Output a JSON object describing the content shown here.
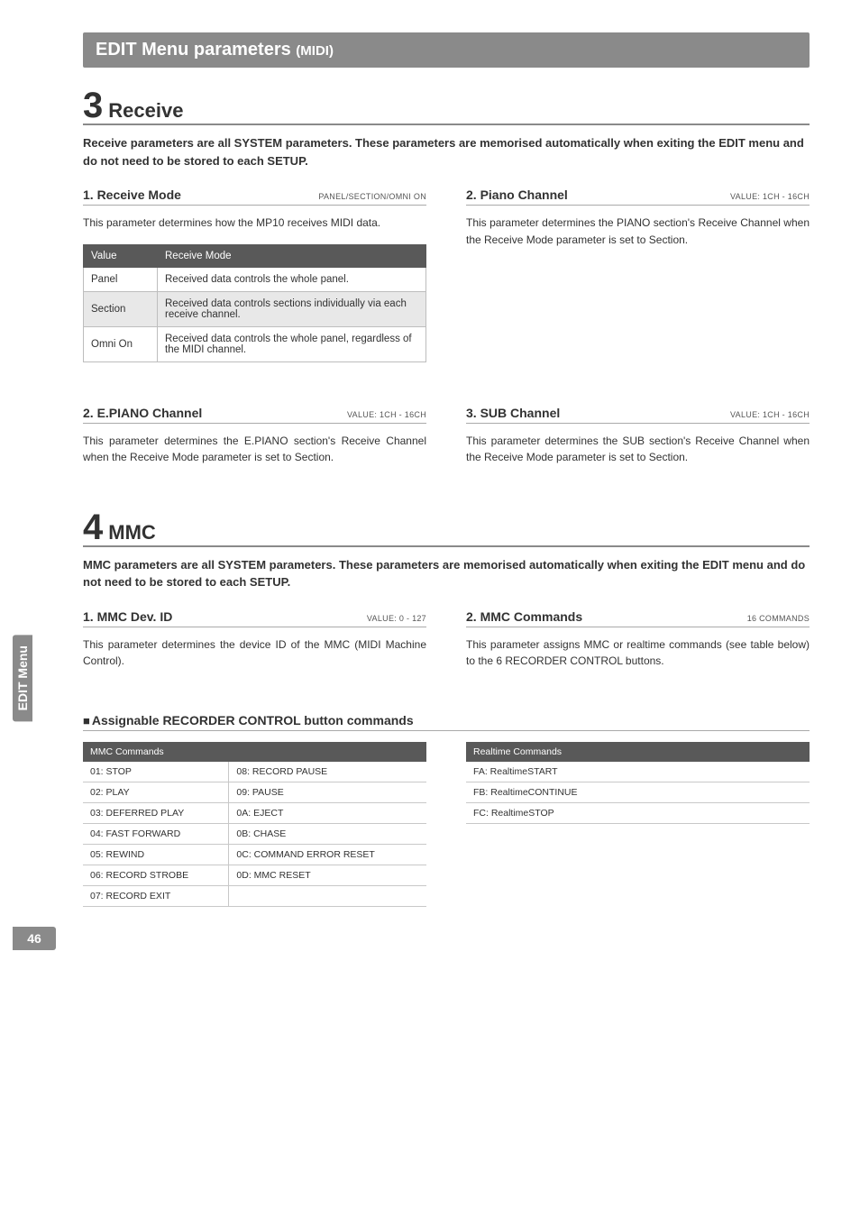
{
  "text_color": "#323232",
  "bg_color": "#ffffff",
  "grey": "#8a8a8a",
  "dark_grey": "#595959",
  "alt_row": "#e8e8e8",
  "border_grey": "#bdbdbd",
  "tab_label": "EDIT Menu",
  "page_number": "46",
  "banner": {
    "main": "EDIT Menu parameters",
    "sub": "(MIDI)"
  },
  "section3": {
    "num": "3",
    "title": "Receive",
    "intro": "Receive parameters are all SYSTEM parameters.  These parameters are memorised automatically when exiting the EDIT menu and do not need to be stored to each SETUP.",
    "p1": {
      "title": "1. Receive Mode",
      "range": "PANEL/SECTION/OMNI ON",
      "body": "This parameter determines how the MP10 receives MIDI data.",
      "table": {
        "headers": [
          "Value",
          "Receive Mode"
        ],
        "rows": [
          [
            "Panel",
            "Received data controls the whole panel."
          ],
          [
            "Section",
            "Received data controls sections individually via each receive channel."
          ],
          [
            "Omni On",
            "Received data controls the whole panel, regardless of the MIDI channel."
          ]
        ]
      }
    },
    "p2": {
      "title": "2. Piano Channel",
      "range": "VALUE: 1CH - 16CH",
      "body": "This parameter determines the PIANO section's Receive Channel when the Receive Mode parameter is set to Section."
    },
    "p3": {
      "title": "2. E.PIANO Channel",
      "range": "VALUE: 1CH - 16CH",
      "body": "This parameter determines the E.PIANO section's Receive Channel when the Receive Mode parameter is set to Section."
    },
    "p4": {
      "title": "3. SUB Channel",
      "range": "VALUE: 1CH - 16CH",
      "body": "This parameter determines the SUB section's Receive Channel when the Receive Mode parameter is set to Section."
    }
  },
  "section4": {
    "num": "4",
    "title": "MMC",
    "intro": "MMC parameters are all SYSTEM parameters.  These parameters are memorised automatically when exiting the EDIT menu and do not need to be stored to each SETUP.",
    "p1": {
      "title": "1. MMC Dev. ID",
      "range": "VALUE: 0 - 127",
      "body": "This parameter determines the device ID of the MMC (MIDI Machine Control)."
    },
    "p2": {
      "title": "2. MMC Commands",
      "range": "16 COMMANDS",
      "body": "This parameter assigns MMC or realtime commands (see table below) to the 6 RECORDER CONTROL buttons."
    },
    "assignable_title": "Assignable RECORDER CONTROL button commands",
    "mmc_table": {
      "header": "MMC Commands",
      "rows": [
        [
          "01: STOP",
          "08: RECORD PAUSE"
        ],
        [
          "02: PLAY",
          "09: PAUSE"
        ],
        [
          "03: DEFERRED PLAY",
          "0A: EJECT"
        ],
        [
          "04: FAST FORWARD",
          "0B: CHASE"
        ],
        [
          "05: REWIND",
          "0C: COMMAND ERROR RESET"
        ],
        [
          "06: RECORD STROBE",
          "0D: MMC RESET"
        ],
        [
          "07: RECORD EXIT",
          ""
        ]
      ]
    },
    "rt_table": {
      "header": "Realtime Commands",
      "rows": [
        "FA: RealtimeSTART",
        "FB: RealtimeCONTINUE",
        "FC: RealtimeSTOP"
      ]
    }
  }
}
